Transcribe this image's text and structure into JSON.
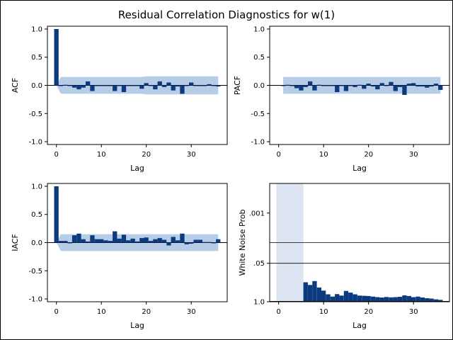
{
  "title": "Residual Correlation Diagnostics for w(1)",
  "colors": {
    "bar": "#0B3A7E",
    "band": "#B7CCE6",
    "band_light": "#DCE5F1",
    "line": "#000000"
  },
  "chart_data": [
    {
      "type": "bar",
      "panel": "acf",
      "ylabel": "ACF",
      "xlabel": "Lag",
      "xlim": [
        -2,
        38
      ],
      "ylim": [
        -1.05,
        1.05
      ],
      "xticks": [
        "0",
        "10",
        "20",
        "30"
      ],
      "yticks": [
        "1.0",
        "0.5",
        "0.0",
        "-0.5",
        "-1.0"
      ],
      "lags": [
        0,
        1,
        2,
        3,
        4,
        5,
        6,
        7,
        8,
        9,
        10,
        11,
        12,
        13,
        14,
        15,
        16,
        17,
        18,
        19,
        20,
        21,
        22,
        23,
        24,
        25,
        26,
        27,
        28,
        29,
        30,
        31,
        32,
        33,
        34,
        35,
        36
      ],
      "values": [
        1.0,
        -0.01,
        0.01,
        0.0,
        -0.04,
        -0.07,
        -0.04,
        0.07,
        -0.1,
        0.0,
        0.0,
        -0.01,
        0.0,
        -0.1,
        0.0,
        -0.12,
        0.0,
        -0.01,
        0.0,
        -0.06,
        0.04,
        -0.01,
        -0.07,
        0.07,
        -0.03,
        0.05,
        -0.09,
        -0.02,
        -0.15,
        0.0,
        0.05,
        -0.01,
        0.0,
        0.0,
        0.02,
        -0.01,
        -0.02
      ],
      "band": [
        0.0,
        0.15,
        0.15,
        0.15,
        0.15,
        0.15,
        0.15,
        0.15,
        0.15,
        0.15,
        0.15,
        0.15,
        0.15,
        0.15,
        0.15,
        0.15,
        0.15,
        0.15,
        0.15,
        0.15,
        0.16,
        0.16,
        0.16,
        0.16,
        0.16,
        0.16,
        0.16,
        0.16,
        0.16,
        0.16,
        0.16,
        0.16,
        0.16,
        0.16,
        0.16,
        0.16,
        0.16
      ]
    },
    {
      "type": "bar",
      "panel": "pacf",
      "ylabel": "PACF",
      "xlabel": "Lag",
      "xlim": [
        -2,
        38
      ],
      "ylim": [
        -1.05,
        1.05
      ],
      "xticks": [
        "0",
        "10",
        "20",
        "30"
      ],
      "yticks": [
        "1.0",
        "0.5",
        "0.0",
        "-0.5",
        "-1.0"
      ],
      "lags": [
        1,
        2,
        3,
        4,
        5,
        6,
        7,
        8,
        9,
        10,
        11,
        12,
        13,
        14,
        15,
        16,
        17,
        18,
        19,
        20,
        21,
        22,
        23,
        24,
        25,
        26,
        27,
        28,
        29,
        30,
        31,
        32,
        33,
        34,
        35,
        36
      ],
      "values": [
        -0.01,
        0.01,
        0.0,
        -0.05,
        -0.09,
        -0.03,
        0.07,
        -0.09,
        0.01,
        -0.01,
        0.0,
        -0.01,
        -0.12,
        0.0,
        -0.1,
        -0.01,
        -0.03,
        0.01,
        -0.06,
        0.03,
        -0.02,
        -0.07,
        0.04,
        0.0,
        0.06,
        -0.1,
        -0.03,
        -0.17,
        0.03,
        0.04,
        -0.02,
        -0.02,
        -0.04,
        -0.02,
        0.03,
        -0.08
      ],
      "band": 0.15
    },
    {
      "type": "bar",
      "panel": "iacf",
      "ylabel": "IACF",
      "xlabel": "Lag",
      "xlim": [
        -2,
        38
      ],
      "ylim": [
        -1.05,
        1.05
      ],
      "xticks": [
        "0",
        "10",
        "20",
        "30"
      ],
      "yticks": [
        "1.0",
        "0.5",
        "0.0",
        "-0.5",
        "-1.0"
      ],
      "lags": [
        0,
        1,
        2,
        3,
        4,
        5,
        6,
        7,
        8,
        9,
        10,
        11,
        12,
        13,
        14,
        15,
        16,
        17,
        18,
        19,
        20,
        21,
        22,
        23,
        24,
        25,
        26,
        27,
        28,
        29,
        30,
        31,
        32,
        33,
        34,
        35,
        36
      ],
      "values": [
        1.0,
        0.03,
        0.03,
        0.0,
        0.13,
        0.16,
        0.06,
        0.02,
        0.13,
        0.06,
        0.06,
        0.04,
        0.03,
        0.2,
        0.07,
        0.14,
        0.04,
        0.07,
        0.02,
        0.08,
        0.09,
        0.03,
        0.06,
        0.08,
        0.05,
        -0.05,
        0.1,
        0.04,
        0.16,
        -0.03,
        -0.02,
        0.05,
        0.05,
        0.01,
        0.01,
        0.0,
        0.06
      ],
      "band": [
        0.0,
        0.15,
        0.15,
        0.15,
        0.15,
        0.15,
        0.15,
        0.15,
        0.15,
        0.15,
        0.15,
        0.15,
        0.15,
        0.15,
        0.15,
        0.15,
        0.15,
        0.15,
        0.15,
        0.15,
        0.15,
        0.15,
        0.15,
        0.15,
        0.15,
        0.15,
        0.15,
        0.15,
        0.15,
        0.15,
        0.15,
        0.15,
        0.15,
        0.15,
        0.15,
        0.15,
        0.15
      ]
    },
    {
      "type": "bar",
      "panel": "white_noise",
      "ylabel": "White Noise Prob",
      "xlabel": "Lag",
      "xlim": [
        -2,
        38
      ],
      "log_scale": true,
      "reference_lines": [
        0.05,
        0.01
      ],
      "yticks": [
        ".001",
        ".05",
        "1.0"
      ],
      "ytick_values": [
        0.001,
        0.05,
        1.0
      ],
      "xticks": [
        "0",
        "10",
        "20",
        "30"
      ],
      "shaded_lags": [
        0,
        5
      ],
      "lags": [
        6,
        7,
        8,
        9,
        10,
        11,
        12,
        13,
        14,
        15,
        16,
        17,
        18,
        19,
        20,
        21,
        22,
        23,
        24,
        25,
        26,
        27,
        28,
        29,
        30,
        31,
        32,
        33,
        34,
        35,
        36
      ],
      "values": [
        0.22,
        0.27,
        0.2,
        0.33,
        0.42,
        0.56,
        0.67,
        0.55,
        0.62,
        0.43,
        0.49,
        0.56,
        0.62,
        0.63,
        0.64,
        0.67,
        0.7,
        0.72,
        0.69,
        0.71,
        0.7,
        0.68,
        0.61,
        0.64,
        0.7,
        0.67,
        0.72,
        0.76,
        0.78,
        0.83,
        0.86
      ]
    }
  ]
}
